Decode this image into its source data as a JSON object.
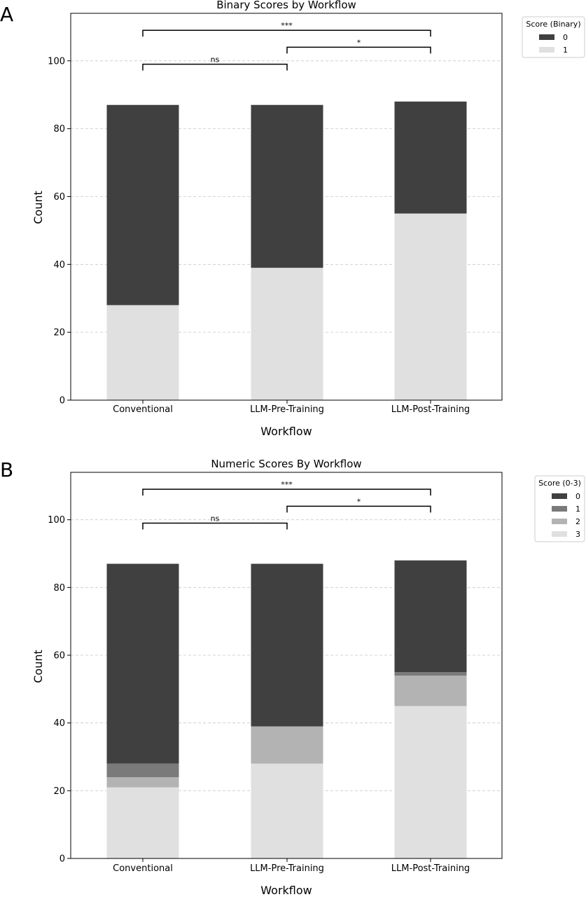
{
  "chart_data": [
    {
      "panel": "A",
      "type": "bar",
      "stacked": true,
      "title": "Binary Scores by Workflow",
      "xlabel": "Workflow",
      "ylabel": "Count",
      "categories": [
        "Conventional",
        "LLM-Pre-Training",
        "LLM-Post-Training"
      ],
      "ylim": [
        0,
        114
      ],
      "yticks": [
        0,
        20,
        40,
        60,
        80,
        100
      ],
      "grid": "y dashed",
      "legend": {
        "title": "Score (Binary)",
        "position": "outside-top-right"
      },
      "series": [
        {
          "name": "1",
          "values": [
            28,
            39,
            55
          ],
          "color": "#e0e0e0"
        },
        {
          "name": "0",
          "values": [
            59,
            48,
            33
          ],
          "color": "#404040"
        }
      ],
      "legend_order": [
        "0",
        "1"
      ],
      "significance": [
        {
          "from": 0,
          "to": 1,
          "y": 99,
          "label": "ns"
        },
        {
          "from": 1,
          "to": 2,
          "y": 104,
          "label": "*"
        },
        {
          "from": 0,
          "to": 2,
          "y": 109,
          "label": "***"
        }
      ]
    },
    {
      "panel": "B",
      "type": "bar",
      "stacked": true,
      "title": "Numeric Scores By Workflow",
      "xlabel": "Workflow",
      "ylabel": "Count",
      "categories": [
        "Conventional",
        "LLM-Pre-Training",
        "LLM-Post-Training"
      ],
      "ylim": [
        0,
        114
      ],
      "yticks": [
        0,
        20,
        40,
        60,
        80,
        100
      ],
      "grid": "y dashed",
      "legend": {
        "title": "Score (0-3)",
        "position": "outside-top-right"
      },
      "series": [
        {
          "name": "3",
          "values": [
            21,
            28,
            45
          ],
          "color": "#e0e0e0"
        },
        {
          "name": "2",
          "values": [
            3,
            11,
            9
          ],
          "color": "#b3b3b3"
        },
        {
          "name": "1",
          "values": [
            4,
            0,
            1
          ],
          "color": "#7a7a7a"
        },
        {
          "name": "0",
          "values": [
            59,
            48,
            33
          ],
          "color": "#404040"
        }
      ],
      "legend_order": [
        "0",
        "1",
        "2",
        "3"
      ],
      "significance": [
        {
          "from": 0,
          "to": 1,
          "y": 99,
          "label": "ns"
        },
        {
          "from": 1,
          "to": 2,
          "y": 104,
          "label": "*"
        },
        {
          "from": 0,
          "to": 2,
          "y": 109,
          "label": "***"
        }
      ]
    }
  ]
}
